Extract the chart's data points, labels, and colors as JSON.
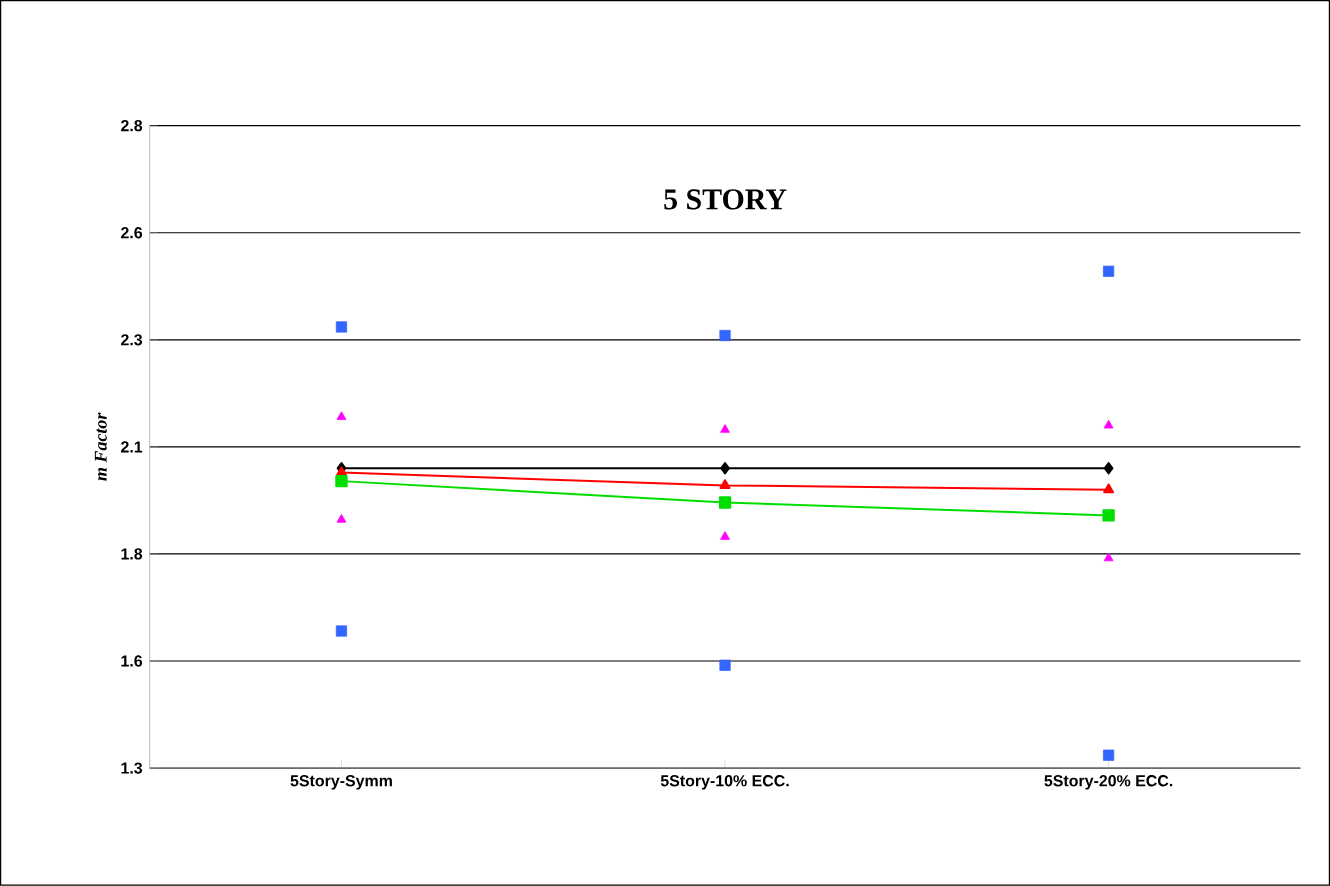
{
  "chart_data": {
    "type": "line",
    "title": "5 STORY",
    "ylabel": "m Factor",
    "categories": [
      "5Story-Symm",
      "5Story-10% ECC.",
      "5Story-20% ECC."
    ],
    "series": [
      {
        "type": "scatter",
        "color": "#3366ff",
        "marker": "square",
        "values": [
          2.33,
          2.31,
          2.46
        ]
      },
      {
        "type": "scatter",
        "color": "#ff00ff",
        "marker": "triangle",
        "values": [
          2.12,
          2.09,
          2.1
        ]
      },
      {
        "color": "#000000",
        "marker": "diamond",
        "line_style": "solid",
        "values": [
          2.0,
          2.0,
          2.0
        ]
      },
      {
        "color": "#ff0000",
        "marker": "triangle",
        "line_style": "solid",
        "values": [
          1.99,
          1.96,
          1.95
        ]
      },
      {
        "color": "#00dd00",
        "marker": "square",
        "line_style": "solid",
        "values": [
          1.97,
          1.92,
          1.89
        ]
      },
      {
        "type": "scatter",
        "color": "#ff00ff",
        "marker": "triangle",
        "values": [
          1.88,
          1.84,
          1.79
        ]
      },
      {
        "type": "scatter",
        "color": "#3366ff",
        "marker": "square",
        "values": [
          1.62,
          1.54,
          1.33
        ]
      }
    ],
    "ylim": [
      1.3,
      2.8
    ],
    "yticks": [
      {
        "value": 1.3,
        "label": "1.3"
      },
      {
        "value": 1.55,
        "label": "1.6"
      },
      {
        "value": 1.8,
        "label": "1.8"
      },
      {
        "value": 2.05,
        "label": "2.1"
      },
      {
        "value": 2.3,
        "label": "2.3"
      },
      {
        "value": 2.55,
        "label": "2.6"
      },
      {
        "value": 2.8,
        "label": "2.8"
      }
    ],
    "grid": "y"
  }
}
